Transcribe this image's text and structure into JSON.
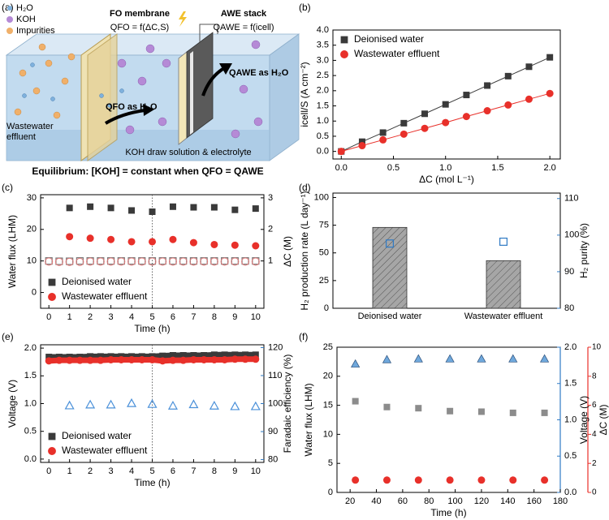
{
  "panel_labels": [
    "(a)",
    "(b)",
    "(c)",
    "(d)",
    "(e)",
    "(f)"
  ],
  "schematic": {
    "legend": [
      "H₂O",
      "KOH",
      "Impurities"
    ],
    "fo_membrane": "FO membrane",
    "q_fo": "QFO = f(ΔC,S)",
    "awe_stack": "AWE stack",
    "q_awe": "QAWE = f(icell)",
    "q_awe_flow": "QAWE as H₂O",
    "q_fo_flow": "QFO as H₂O",
    "feed_label": "Wastewater effluent",
    "draw_label": "KOH draw solution & electrolyte",
    "equilibrium": "Equilibrium: [KOH] = constant when QFO = QAWE"
  },
  "chart_data": [
    {
      "type": "line",
      "xlabel": "ΔC (mol L⁻¹)",
      "ylabel": "icell/S (A cm⁻²)",
      "xlim": [
        -0.08,
        2.1
      ],
      "ylim": [
        -0.25,
        4.0
      ],
      "xticks": [
        {
          "value": 0,
          "label": "0.0"
        },
        {
          "value": 0.5,
          "label": "0.5"
        },
        {
          "value": 1,
          "label": "1.0"
        },
        {
          "value": 1.5,
          "label": "1.5"
        },
        {
          "value": 2,
          "label": "2.0"
        }
      ],
      "yticks": [
        {
          "value": 0,
          "label": "0.0"
        },
        {
          "value": 0.5,
          "label": "0.5"
        },
        {
          "value": 1,
          "label": "1.0"
        },
        {
          "value": 1.5,
          "label": "1.5"
        },
        {
          "value": 2,
          "label": "2.0"
        },
        {
          "value": 2.5,
          "label": "2.5"
        },
        {
          "value": 3,
          "label": "3.0"
        },
        {
          "value": 3.5,
          "label": "3.5"
        },
        {
          "value": 4,
          "label": "4.0"
        }
      ],
      "legend": "upper left",
      "series": [
        {
          "name": "Deionised water",
          "color": "#3a3a3a",
          "marker": "square",
          "line_width": 1,
          "x": [
            0,
            0.2,
            0.4,
            0.6,
            0.8,
            1.0,
            1.2,
            1.4,
            1.6,
            1.8,
            2.0
          ],
          "values": [
            0,
            0.32,
            0.62,
            0.93,
            1.24,
            1.55,
            1.86,
            2.17,
            2.48,
            2.79,
            3.1
          ]
        },
        {
          "name": "Wastewater effluent",
          "color": "#e8302a",
          "marker": "circle",
          "line_width": 1,
          "x": [
            0,
            0.2,
            0.4,
            0.6,
            0.8,
            1.0,
            1.2,
            1.4,
            1.6,
            1.8,
            2.0
          ],
          "values": [
            0,
            0.19,
            0.38,
            0.57,
            0.76,
            0.95,
            1.15,
            1.34,
            1.53,
            1.72,
            1.91
          ]
        }
      ]
    },
    {
      "type": "scatter",
      "xlabel": "Time (h)",
      "ylabel": "Water flux (LHM)",
      "y2label": "ΔC (M)",
      "xlim": [
        -0.4,
        10.4
      ],
      "ylim": [
        -5,
        31
      ],
      "y2lim": [
        -0.5,
        3.1
      ],
      "xticks": [
        0,
        1,
        2,
        3,
        4,
        5,
        6,
        7,
        8,
        9,
        10
      ],
      "yticks": [
        0,
        10,
        20,
        30
      ],
      "y2ticks": [
        1,
        2,
        3
      ],
      "legend": "lower left",
      "vlines": [
        5
      ],
      "series": [
        {
          "name": "Deionised water",
          "color": "#3a3a3a",
          "marker": "square",
          "x": [
            1,
            2,
            3,
            4,
            5,
            6,
            7,
            8,
            9,
            10
          ],
          "values": [
            26.8,
            27.2,
            26.8,
            26.0,
            25.6,
            27.2,
            27.0,
            27.0,
            26.2,
            26.6
          ]
        },
        {
          "name": "Wastewater effluent",
          "color": "#e8302a",
          "marker": "circle",
          "x": [
            1,
            2,
            3,
            4,
            5,
            6,
            7,
            8,
            9,
            10
          ],
          "values": [
            17.7,
            17.2,
            16.8,
            16.1,
            16.1,
            16.8,
            15.8,
            15.2,
            15.0,
            14.8
          ]
        },
        {
          "color": "#777777",
          "marker": "open-square",
          "axis": "y2",
          "x": [
            0,
            0.5,
            1,
            1.5,
            2,
            2.5,
            3,
            3.5,
            4,
            4.5,
            5,
            5.5,
            6,
            6.5,
            7,
            7.5,
            8,
            8.5,
            9,
            9.5,
            10
          ],
          "values": [
            1.0,
            0.99,
            0.99,
            1.0,
            1.0,
            1.0,
            1.0,
            1.0,
            1.0,
            1.0,
            1.0,
            1.0,
            1.0,
            1.0,
            1.0,
            1.0,
            1.0,
            1.0,
            1.0,
            1.0,
            1.0
          ]
        },
        {
          "color": "#e07a7a",
          "marker": "open-circle",
          "axis": "y2",
          "x": [
            0,
            0.5,
            1,
            1.5,
            2,
            2.5,
            3,
            3.5,
            4,
            4.5,
            5,
            5.5,
            6,
            6.5,
            7,
            7.5,
            8,
            8.5,
            9,
            9.5,
            10
          ],
          "values": [
            0.98,
            0.97,
            0.97,
            0.97,
            0.98,
            0.98,
            0.98,
            0.98,
            0.98,
            0.98,
            0.98,
            0.98,
            0.98,
            0.98,
            0.98,
            0.98,
            0.98,
            0.98,
            0.98,
            0.98,
            0.98
          ]
        }
      ]
    },
    {
      "type": "bar",
      "ylabel": "H₂ production rate (L day⁻¹)",
      "y2label": "H₂ purity (%)",
      "y2_color": "#2f7ac4",
      "categories": [
        "Deionised water",
        "Wastewater effluent"
      ],
      "ylim": [
        0,
        104
      ],
      "y2lim": [
        80,
        111.5
      ],
      "yticks": [
        0,
        25,
        50,
        75,
        100
      ],
      "y2ticks": [
        80,
        90,
        100,
        110
      ],
      "series": [
        {
          "type": "bar",
          "color": "#a6a6a6",
          "hatch": true,
          "values": [
            73,
            43
          ]
        },
        {
          "color": "#2f7ac4",
          "marker": "open-square",
          "axis": "y2",
          "values": [
            97.7,
            98.2
          ]
        }
      ]
    },
    {
      "type": "line",
      "xlabel": "Time (h)",
      "ylabel": "Voltage (V)",
      "y2label": "Faradaic efficiency (%)",
      "y2_color": "#2f7ac4",
      "xlim": [
        -0.4,
        10.4
      ],
      "ylim": [
        -0.06,
        2.06
      ],
      "y2lim": [
        79,
        121
      ],
      "xticks": [
        0,
        1,
        2,
        3,
        4,
        5,
        6,
        7,
        8,
        9,
        10
      ],
      "yticks": [
        {
          "value": 0,
          "label": "0.0"
        },
        {
          "value": 0.5,
          "label": "0.5"
        },
        {
          "value": 1,
          "label": "1.0"
        },
        {
          "value": 1.5,
          "label": "1.5"
        },
        {
          "value": 2,
          "label": "2.0"
        }
      ],
      "y2ticks": [
        80,
        90,
        100,
        110,
        120
      ],
      "legend": "lower left",
      "vlines": [
        5
      ],
      "series": [
        {
          "name": "Deionised water",
          "color": "#3a3a3a",
          "marker": "square",
          "line_width": 7,
          "x": [
            0,
            0.5,
            1,
            1.5,
            2,
            2.5,
            3,
            3.5,
            4,
            4.5,
            5,
            5.5,
            6,
            6.5,
            7,
            7.5,
            8,
            8.5,
            9,
            9.5,
            10
          ],
          "values": [
            1.84,
            1.84,
            1.84,
            1.84,
            1.85,
            1.85,
            1.85,
            1.85,
            1.85,
            1.85,
            1.85,
            1.86,
            1.87,
            1.87,
            1.87,
            1.87,
            1.88,
            1.88,
            1.88,
            1.88,
            1.88
          ]
        },
        {
          "name": "Wastewater effluent",
          "color": "#e8302a",
          "marker": "circle",
          "line_width": 7,
          "x": [
            0,
            0.5,
            1,
            1.5,
            2,
            2.5,
            3,
            3.5,
            4,
            4.5,
            5,
            5.5,
            6,
            6.5,
            7,
            7.5,
            8,
            8.5,
            9,
            9.5,
            10
          ],
          "values": [
            1.77,
            1.78,
            1.78,
            1.78,
            1.78,
            1.78,
            1.79,
            1.79,
            1.79,
            1.79,
            1.79,
            1.77,
            1.78,
            1.78,
            1.79,
            1.79,
            1.79,
            1.79,
            1.8,
            1.8,
            1.8
          ]
        },
        {
          "color": "#4a90d9",
          "marker": "open-triangle",
          "axis": "y2",
          "x": [
            1,
            2,
            3,
            4,
            5,
            6,
            7,
            8,
            9,
            10
          ],
          "values": [
            99.3,
            99.6,
            99.6,
            100.1,
            99.8,
            99.2,
            99.7,
            99.2,
            99.0,
            99.0
          ]
        }
      ]
    },
    {
      "type": "scatter",
      "xlabel": "Time (h)",
      "ylabel": "Water flux (LHM)",
      "y2label": "Voltage (V)",
      "y3label": "ΔC (M)",
      "y2_color": "#2f7ac4",
      "y3_color": "#e8302a",
      "xlim": [
        10,
        180
      ],
      "ylim": [
        0,
        25
      ],
      "y2lim": [
        0,
        2.0
      ],
      "y3lim": [
        0,
        10
      ],
      "xticks": [
        20,
        40,
        60,
        80,
        100,
        120,
        140,
        160,
        180
      ],
      "yticks": [
        0,
        5,
        10,
        15,
        20,
        25
      ],
      "y2ticks": [
        {
          "value": 0,
          "label": "0.0"
        },
        {
          "value": 0.5,
          "label": "0.5"
        },
        {
          "value": 1,
          "label": "1.0"
        },
        {
          "value": 1.5,
          "label": "1.5"
        },
        {
          "value": 2,
          "label": "2.0"
        }
      ],
      "y3ticks": [
        0,
        2,
        4,
        6,
        8,
        10
      ],
      "series": [
        {
          "color": "#8c8c8c",
          "marker": "square",
          "x": [
            24,
            48,
            72,
            96,
            120,
            144,
            168
          ],
          "values": [
            15.7,
            14.7,
            14.5,
            14.0,
            13.9,
            13.7,
            13.7
          ]
        },
        {
          "color": "#6fa8dc",
          "marker": "triangle",
          "axis": "y2",
          "x": [
            24,
            48,
            72,
            96,
            120,
            144,
            168
          ],
          "values": [
            1.77,
            1.83,
            1.84,
            1.84,
            1.84,
            1.84,
            1.84
          ]
        },
        {
          "color": "#e8302a",
          "marker": "circle",
          "axis": "y3",
          "x": [
            24,
            48,
            72,
            96,
            120,
            144,
            168
          ],
          "values": [
            0.85,
            0.85,
            0.85,
            0.85,
            0.85,
            0.85,
            0.85
          ]
        }
      ]
    }
  ]
}
